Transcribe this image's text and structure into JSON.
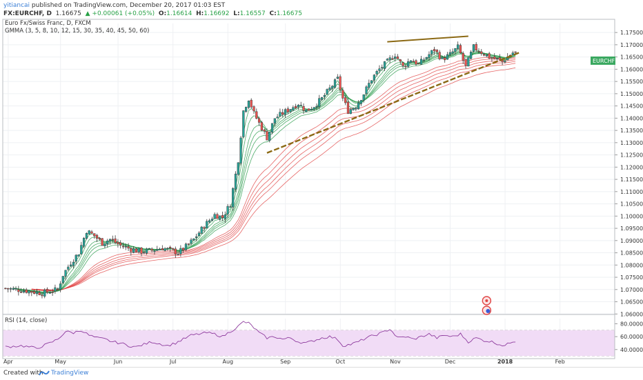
{
  "header": {
    "author": "yitiancai",
    "published": " published on TradingView.com, December 20, 2017 01:03 EST",
    "symbol": "FX:EURCHF, D",
    "last": "1.16675",
    "change": "▲ +0.00061 (+0.05%)",
    "o_label": "O:",
    "o": "1.16614",
    "h_label": "H:",
    "h": "1.16692",
    "l_label": "L:",
    "l": "1.16557",
    "c_label": "C:",
    "c": "1.16675"
  },
  "chart_data": {
    "type": "candlestick",
    "title": "Euro Fx/Swiss Franc, D, FXCM",
    "indicator": "GMMA (3, 5, 8, 10, 12, 15, 30, 35, 40, 45, 50, 60)",
    "x_ticks": [
      "Apr",
      "May",
      "Jun",
      "Jul",
      "Aug",
      "Sep",
      "Oct",
      "Nov",
      "Dec",
      "2018",
      "Feb"
    ],
    "y_ticks": [
      "1.17500",
      "1.17000",
      "1.16500",
      "1.16000",
      "1.15500",
      "1.15000",
      "1.14500",
      "1.14000",
      "1.13500",
      "1.13000",
      "1.12500",
      "1.12000",
      "1.11500",
      "1.11000",
      "1.10500",
      "1.10000",
      "1.09500",
      "1.09000",
      "1.08500",
      "1.08000",
      "1.07500",
      "1.07000",
      "1.06500",
      "1.06000"
    ],
    "ylim": [
      1.0598,
      1.1787
    ],
    "price_label": "EURCHF",
    "last_price": 1.16675,
    "close_path": [
      [
        0,
        1.0705
      ],
      [
        8,
        1.0695
      ],
      [
        14,
        1.0685
      ],
      [
        20,
        1.07
      ],
      [
        22,
        1.076
      ],
      [
        25,
        1.081
      ],
      [
        28,
        1.085
      ],
      [
        31,
        1.094
      ],
      [
        34,
        1.092
      ],
      [
        37,
        1.089
      ],
      [
        40,
        1.0905
      ],
      [
        44,
        1.088
      ],
      [
        48,
        1.0865
      ],
      [
        52,
        1.0855
      ],
      [
        56,
        1.086
      ],
      [
        60,
        1.087
      ],
      [
        63,
        1.086
      ],
      [
        66,
        1.085
      ],
      [
        69,
        1.0875
      ],
      [
        72,
        1.0905
      ],
      [
        76,
        1.096
      ],
      [
        80,
        1.1005
      ],
      [
        83,
        1.0995
      ],
      [
        86,
        1.105
      ],
      [
        89,
        1.123
      ],
      [
        91,
        1.143
      ],
      [
        93,
        1.148
      ],
      [
        95,
        1.142
      ],
      [
        97,
        1.138
      ],
      [
        100,
        1.132
      ],
      [
        103,
        1.14
      ],
      [
        106,
        1.142
      ],
      [
        109,
        1.144
      ],
      [
        112,
        1.146
      ],
      [
        115,
        1.143
      ],
      [
        118,
        1.145
      ],
      [
        121,
        1.148
      ],
      [
        124,
        1.152
      ],
      [
        127,
        1.156
      ],
      [
        129,
        1.148
      ],
      [
        131,
        1.143
      ],
      [
        134,
        1.145
      ],
      [
        137,
        1.15
      ],
      [
        140,
        1.156
      ],
      [
        143,
        1.16
      ],
      [
        146,
        1.163
      ],
      [
        149,
        1.166
      ],
      [
        152,
        1.161
      ],
      [
        155,
        1.164
      ],
      [
        158,
        1.162
      ],
      [
        161,
        1.165
      ],
      [
        164,
        1.168
      ],
      [
        167,
        1.164
      ],
      [
        170,
        1.166
      ],
      [
        173,
        1.169
      ],
      [
        176,
        1.161
      ],
      [
        179,
        1.169
      ],
      [
        182,
        1.167
      ],
      [
        185,
        1.165
      ],
      [
        188,
        1.164
      ],
      [
        190,
        1.163
      ],
      [
        192,
        1.165
      ],
      [
        194,
        1.16675
      ]
    ],
    "ma_fast_lengths": [
      3,
      5,
      8,
      10,
      12,
      15
    ],
    "ma_slow_lengths": [
      30,
      35,
      40,
      45,
      50,
      60
    ],
    "colors": {
      "up": "#26a69a",
      "down": "#ef5350",
      "fast": "#2e9e4f",
      "slow": "#e03d3d",
      "trend": "#8b6914",
      "rsi": "#8e3b9e",
      "rsi_band": "#f1dcf6"
    },
    "rsi": {
      "label": "RSI (14, close)",
      "ticks": [
        "80.0000",
        "60.0000",
        "40.0000"
      ],
      "ylim": [
        28,
        88
      ],
      "band": [
        30,
        70
      ],
      "values": [
        [
          0,
          44
        ],
        [
          6,
          46
        ],
        [
          12,
          42
        ],
        [
          17,
          50
        ],
        [
          20,
          56
        ],
        [
          23,
          68
        ],
        [
          26,
          66
        ],
        [
          29,
          70
        ],
        [
          32,
          62
        ],
        [
          35,
          58
        ],
        [
          38,
          56
        ],
        [
          41,
          52
        ],
        [
          44,
          50
        ],
        [
          47,
          46
        ],
        [
          50,
          44
        ],
        [
          53,
          48
        ],
        [
          56,
          52
        ],
        [
          59,
          49
        ],
        [
          62,
          46
        ],
        [
          65,
          50
        ],
        [
          68,
          56
        ],
        [
          71,
          62
        ],
        [
          74,
          64
        ],
        [
          77,
          66
        ],
        [
          80,
          64
        ],
        [
          83,
          60
        ],
        [
          86,
          68
        ],
        [
          89,
          76
        ],
        [
          91,
          83
        ],
        [
          93,
          81
        ],
        [
          95,
          74
        ],
        [
          97,
          66
        ],
        [
          100,
          58
        ],
        [
          103,
          60
        ],
        [
          106,
          56
        ],
        [
          109,
          58
        ],
        [
          112,
          52
        ],
        [
          115,
          50
        ],
        [
          118,
          54
        ],
        [
          121,
          58
        ],
        [
          124,
          60
        ],
        [
          127,
          56
        ],
        [
          129,
          46
        ],
        [
          132,
          48
        ],
        [
          135,
          52
        ],
        [
          138,
          58
        ],
        [
          141,
          62
        ],
        [
          144,
          66
        ],
        [
          147,
          72
        ],
        [
          150,
          58
        ],
        [
          153,
          60
        ],
        [
          156,
          56
        ],
        [
          159,
          60
        ],
        [
          162,
          64
        ],
        [
          165,
          58
        ],
        [
          168,
          62
        ],
        [
          171,
          60
        ],
        [
          174,
          64
        ],
        [
          177,
          52
        ],
        [
          180,
          58
        ],
        [
          183,
          54
        ],
        [
          186,
          52
        ],
        [
          189,
          48
        ],
        [
          191,
          46
        ],
        [
          194,
          53
        ]
      ]
    }
  }
}
